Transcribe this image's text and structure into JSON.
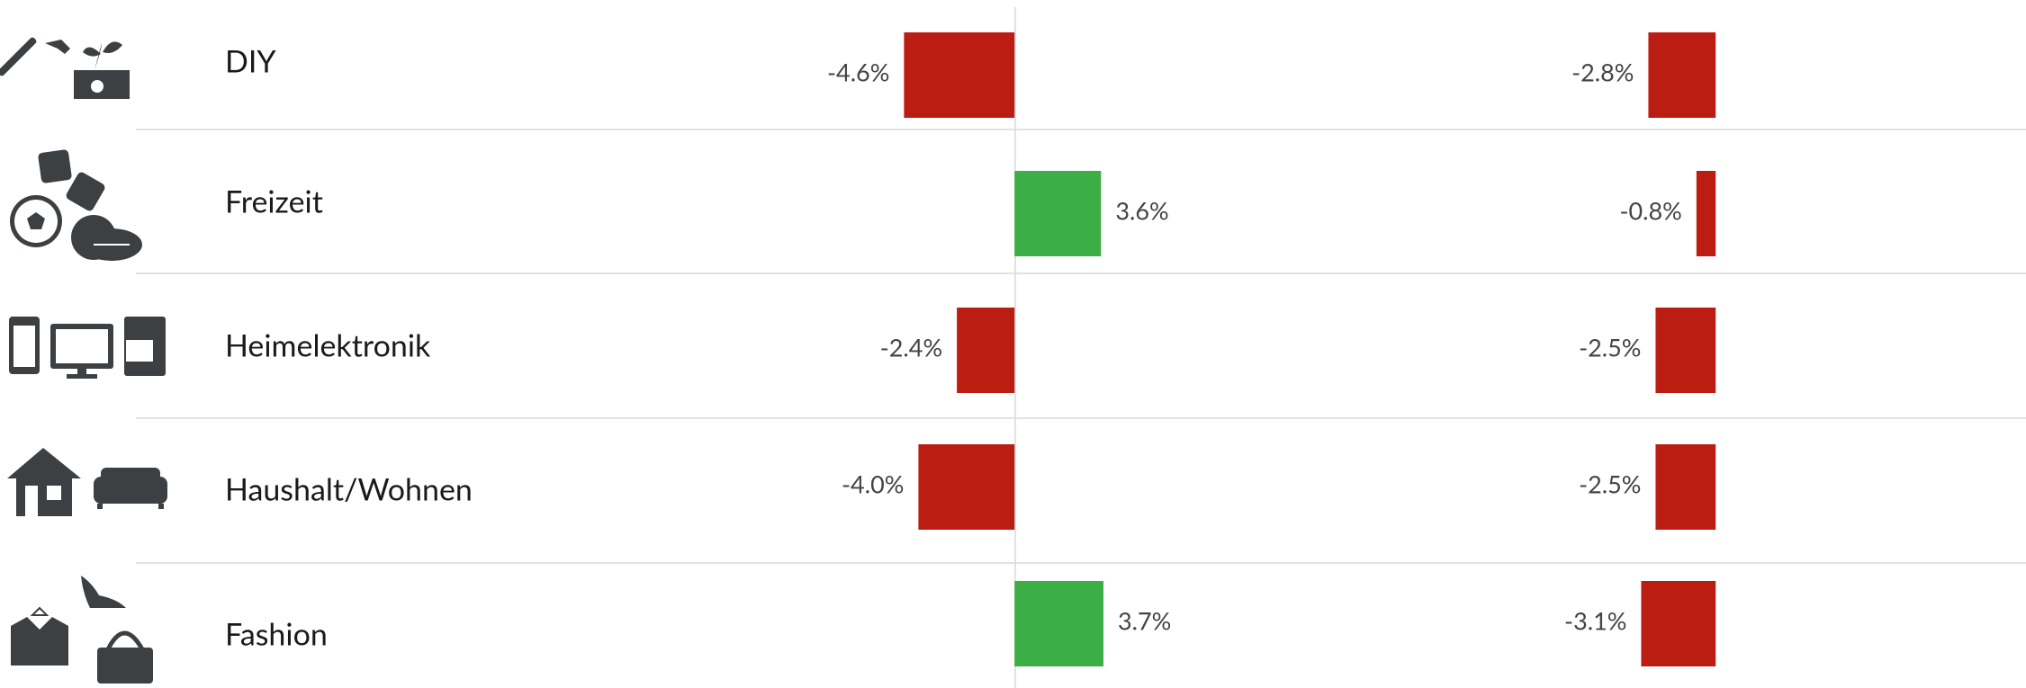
{
  "chart_data": {
    "type": "bar",
    "orientation": "horizontal",
    "categories": [
      "DIY",
      "Freizeit",
      "Heimelektronik",
      "Haushalt/Wohnen",
      "Fashion"
    ],
    "series": [
      {
        "values": [
          -4.6,
          3.6,
          -2.4,
          -4.0,
          3.7
        ],
        "value_labels": [
          "-4.6%",
          "3.6%",
          "-2.4%",
          "-4.0%",
          "3.7%"
        ]
      },
      {
        "values": [
          -2.8,
          -0.8,
          -2.5,
          -2.5,
          -3.1
        ],
        "value_labels": [
          "-2.8%",
          "-0.8%",
          "-2.5%",
          "-2.5%",
          "-3.1%"
        ]
      }
    ],
    "xlim": [
      -6,
      4
    ],
    "positive_color": "#3dae45",
    "negative_color": "#bb1d12"
  }
}
